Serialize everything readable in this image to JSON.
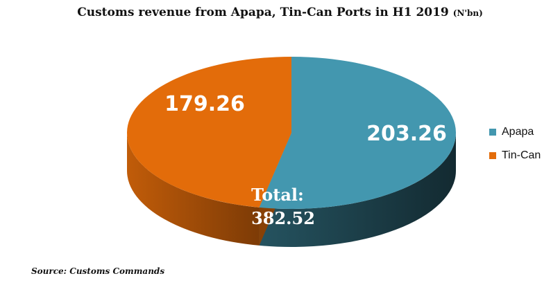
{
  "chart_data": {
    "type": "pie",
    "title": "Customs revenue from Apapa, Tin-Can Ports in H1 2019",
    "unit": "(N'bn)",
    "categories": [
      "Apapa",
      "Tin-Can"
    ],
    "values": [
      203.26,
      179.26
    ],
    "value_labels": [
      "203.26",
      "179.26"
    ],
    "colors": [
      "#4397af",
      "#e36c0a"
    ],
    "total_label": "Total:",
    "total_value": "382.52",
    "legend": "right",
    "source": "Source: Customs Commands"
  }
}
